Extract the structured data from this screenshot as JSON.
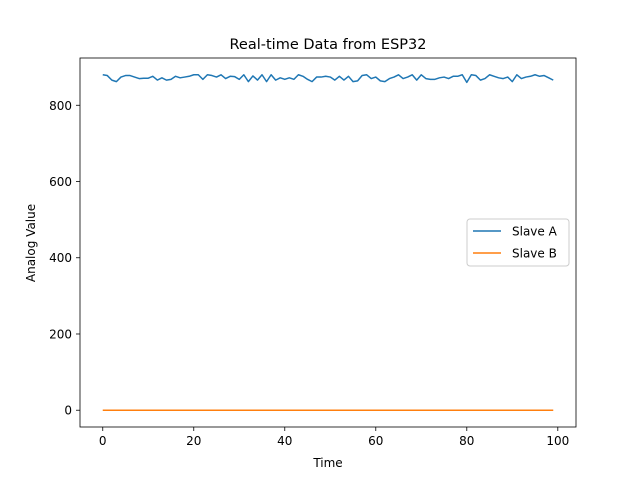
{
  "chart_data": {
    "type": "line",
    "title": "Real-time Data from ESP32",
    "xlabel": "Time",
    "ylabel": "Analog Value",
    "xlim": [
      -5,
      104
    ],
    "ylim": [
      -44,
      924
    ],
    "xticks": [
      0,
      20,
      40,
      60,
      80,
      100
    ],
    "yticks": [
      0,
      200,
      400,
      600,
      800
    ],
    "grid": false,
    "legend_position": "center-right",
    "series": [
      {
        "name": "Slave A",
        "color": "#1f77b4",
        "x_start": 0,
        "x_step": 1,
        "values": [
          880,
          878,
          866,
          862,
          874,
          878,
          878,
          874,
          870,
          871,
          871,
          876,
          866,
          872,
          866,
          868,
          876,
          872,
          874,
          876,
          880,
          880,
          868,
          880,
          878,
          874,
          880,
          870,
          876,
          875,
          868,
          880,
          862,
          877,
          866,
          880,
          862,
          880,
          866,
          872,
          868,
          872,
          868,
          880,
          876,
          868,
          862,
          874,
          874,
          876,
          874,
          866,
          876,
          866,
          876,
          862,
          864,
          878,
          880,
          870,
          874,
          864,
          862,
          870,
          874,
          880,
          870,
          874,
          880,
          866,
          880,
          870,
          868,
          868,
          872,
          874,
          870,
          876,
          876,
          880,
          860,
          880,
          878,
          866,
          870,
          880,
          876,
          872,
          870,
          874,
          862,
          880,
          870,
          874,
          876,
          880,
          876,
          878,
          872,
          866
        ]
      },
      {
        "name": "Slave B",
        "color": "#ff7f0e",
        "x_start": 0,
        "x_step": 1,
        "values": [
          0,
          0,
          0,
          0,
          0,
          0,
          0,
          0,
          0,
          0,
          0,
          0,
          0,
          0,
          0,
          0,
          0,
          0,
          0,
          0,
          0,
          0,
          0,
          0,
          0,
          0,
          0,
          0,
          0,
          0,
          0,
          0,
          0,
          0,
          0,
          0,
          0,
          0,
          0,
          0,
          0,
          0,
          0,
          0,
          0,
          0,
          0,
          0,
          0,
          0,
          0,
          0,
          0,
          0,
          0,
          0,
          0,
          0,
          0,
          0,
          0,
          0,
          0,
          0,
          0,
          0,
          0,
          0,
          0,
          0,
          0,
          0,
          0,
          0,
          0,
          0,
          0,
          0,
          0,
          0,
          0,
          0,
          0,
          0,
          0,
          0,
          0,
          0,
          0,
          0,
          0,
          0,
          0,
          0,
          0,
          0,
          0,
          0,
          0,
          0
        ]
      }
    ]
  }
}
